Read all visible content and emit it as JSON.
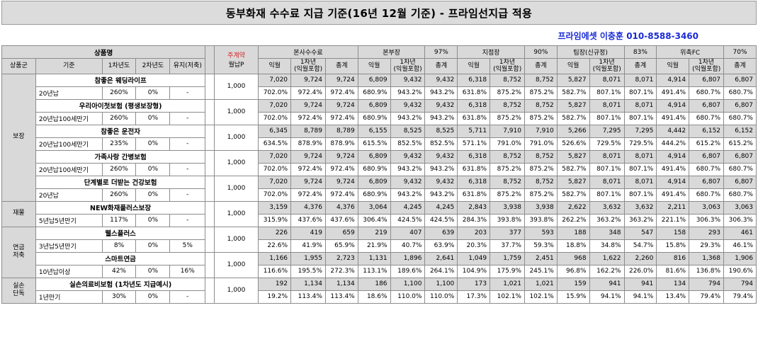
{
  "title": "동부화재 수수료 지급 기준(16년 12월 기준) - 프라임선지급 적용",
  "contact": "프라임에셋 이충훈 010-8588-3460",
  "header": {
    "product_name": "상품명",
    "premium_label_top": "주계약",
    "premium_label_bottom": "월납P",
    "product_cols": [
      "상품군",
      "기준",
      "1차년도",
      "2차년도",
      "유지(저축)"
    ],
    "groups": [
      {
        "name": "본사수수료",
        "pct": ""
      },
      {
        "name": "본부장",
        "pct": "97%"
      },
      {
        "name": "지점장",
        "pct": "90%"
      },
      {
        "name": "팀장(신규정)",
        "pct": "83%"
      },
      {
        "name": "위촉FC",
        "pct": "70%"
      }
    ],
    "sub_cols": [
      "익월",
      "1차년\n(익월포함)",
      "총계"
    ]
  },
  "categories": [
    {
      "label": "보장",
      "start": 0,
      "span": 5
    },
    {
      "label": "재물",
      "start": 5,
      "span": 1
    },
    {
      "label": "연금\n저축",
      "start": 6,
      "span": 2
    },
    {
      "label": "실손\n단독",
      "start": 8,
      "span": 1
    }
  ],
  "products": [
    {
      "name": "참좋은 웨딩라이프",
      "basis": "20년납",
      "y1": "260%",
      "y2": "0%",
      "maint": "-",
      "premium": "1,000",
      "amounts": [
        [
          "7,020",
          "9,724",
          "9,724"
        ],
        [
          "6,809",
          "9,432",
          "9,432"
        ],
        [
          "6,318",
          "8,752",
          "8,752"
        ],
        [
          "5,827",
          "8,071",
          "8,071"
        ],
        [
          "4,914",
          "6,807",
          "6,807"
        ]
      ],
      "rates": [
        [
          "702.0%",
          "972.4%",
          "972.4%"
        ],
        [
          "680.9%",
          "943.2%",
          "943.2%"
        ],
        [
          "631.8%",
          "875.2%",
          "875.2%"
        ],
        [
          "582.7%",
          "807.1%",
          "807.1%"
        ],
        [
          "491.4%",
          "680.7%",
          "680.7%"
        ]
      ]
    },
    {
      "name": "우리아이첫보험 (평생보장형)",
      "basis": "20년납100세만기",
      "y1": "260%",
      "y2": "0%",
      "maint": "-",
      "premium": "1,000",
      "amounts": [
        [
          "7,020",
          "9,724",
          "9,724"
        ],
        [
          "6,809",
          "9,432",
          "9,432"
        ],
        [
          "6,318",
          "8,752",
          "8,752"
        ],
        [
          "5,827",
          "8,071",
          "8,071"
        ],
        [
          "4,914",
          "6,807",
          "6,807"
        ]
      ],
      "rates": [
        [
          "702.0%",
          "972.4%",
          "972.4%"
        ],
        [
          "680.9%",
          "943.2%",
          "943.2%"
        ],
        [
          "631.8%",
          "875.2%",
          "875.2%"
        ],
        [
          "582.7%",
          "807.1%",
          "807.1%"
        ],
        [
          "491.4%",
          "680.7%",
          "680.7%"
        ]
      ]
    },
    {
      "name": "참좋은 운전자",
      "basis": "20년납100세만기",
      "y1": "235%",
      "y2": "0%",
      "maint": "-",
      "premium": "1,000",
      "amounts": [
        [
          "6,345",
          "8,789",
          "8,789"
        ],
        [
          "6,155",
          "8,525",
          "8,525"
        ],
        [
          "5,711",
          "7,910",
          "7,910"
        ],
        [
          "5,266",
          "7,295",
          "7,295"
        ],
        [
          "4,442",
          "6,152",
          "6,152"
        ]
      ],
      "rates": [
        [
          "634.5%",
          "878.9%",
          "878.9%"
        ],
        [
          "615.5%",
          "852.5%",
          "852.5%"
        ],
        [
          "571.1%",
          "791.0%",
          "791.0%"
        ],
        [
          "526.6%",
          "729.5%",
          "729.5%"
        ],
        [
          "444.2%",
          "615.2%",
          "615.2%"
        ]
      ]
    },
    {
      "name": "가족사랑 간병보험",
      "basis": "20년납100세만기",
      "y1": "260%",
      "y2": "0%",
      "maint": "-",
      "premium": "1,000",
      "amounts": [
        [
          "7,020",
          "9,724",
          "9,724"
        ],
        [
          "6,809",
          "9,432",
          "9,432"
        ],
        [
          "6,318",
          "8,752",
          "8,752"
        ],
        [
          "5,827",
          "8,071",
          "8,071"
        ],
        [
          "4,914",
          "6,807",
          "6,807"
        ]
      ],
      "rates": [
        [
          "702.0%",
          "972.4%",
          "972.4%"
        ],
        [
          "680.9%",
          "943.2%",
          "943.2%"
        ],
        [
          "631.8%",
          "875.2%",
          "875.2%"
        ],
        [
          "582.7%",
          "807.1%",
          "807.1%"
        ],
        [
          "491.4%",
          "680.7%",
          "680.7%"
        ]
      ]
    },
    {
      "name": "단계별로 더받는 건강보험",
      "basis": "20년납",
      "y1": "260%",
      "y2": "0%",
      "maint": "-",
      "premium": "1,000",
      "amounts": [
        [
          "7,020",
          "9,724",
          "9,724"
        ],
        [
          "6,809",
          "9,432",
          "9,432"
        ],
        [
          "6,318",
          "8,752",
          "8,752"
        ],
        [
          "5,827",
          "8,071",
          "8,071"
        ],
        [
          "4,914",
          "6,807",
          "6,807"
        ]
      ],
      "rates": [
        [
          "702.0%",
          "972.4%",
          "972.4%"
        ],
        [
          "680.9%",
          "943.2%",
          "943.2%"
        ],
        [
          "631.8%",
          "875.2%",
          "875.2%"
        ],
        [
          "582.7%",
          "807.1%",
          "807.1%"
        ],
        [
          "491.4%",
          "680.7%",
          "680.7%"
        ]
      ]
    },
    {
      "name": "NEW화재플러스보장",
      "basis": "5년납5년만기",
      "y1": "117%",
      "y2": "0%",
      "maint": "-",
      "premium": "1,000",
      "amounts": [
        [
          "3,159",
          "4,376",
          "4,376"
        ],
        [
          "3,064",
          "4,245",
          "4,245"
        ],
        [
          "2,843",
          "3,938",
          "3,938"
        ],
        [
          "2,622",
          "3,632",
          "3,632"
        ],
        [
          "2,211",
          "3,063",
          "3,063"
        ]
      ],
      "rates": [
        [
          "315.9%",
          "437.6%",
          "437.6%"
        ],
        [
          "306.4%",
          "424.5%",
          "424.5%"
        ],
        [
          "284.3%",
          "393.8%",
          "393.8%"
        ],
        [
          "262.2%",
          "363.2%",
          "363.2%"
        ],
        [
          "221.1%",
          "306.3%",
          "306.3%"
        ]
      ]
    },
    {
      "name": "웰스플러스",
      "basis": "3년납5년만기",
      "y1": "8%",
      "y2": "0%",
      "maint": "5%",
      "premium": "1,000",
      "amounts": [
        [
          "226",
          "419",
          "659"
        ],
        [
          "219",
          "407",
          "639"
        ],
        [
          "203",
          "377",
          "593"
        ],
        [
          "188",
          "348",
          "547"
        ],
        [
          "158",
          "293",
          "461"
        ]
      ],
      "rates": [
        [
          "22.6%",
          "41.9%",
          "65.9%"
        ],
        [
          "21.9%",
          "40.7%",
          "63.9%"
        ],
        [
          "20.3%",
          "37.7%",
          "59.3%"
        ],
        [
          "18.8%",
          "34.8%",
          "54.7%"
        ],
        [
          "15.8%",
          "29.3%",
          "46.1%"
        ]
      ]
    },
    {
      "name": "스마트연금",
      "basis": "10년납이상",
      "y1": "42%",
      "y2": "0%",
      "maint": "16%",
      "premium": "1,000",
      "amounts": [
        [
          "1,166",
          "1,955",
          "2,723"
        ],
        [
          "1,131",
          "1,896",
          "2,641"
        ],
        [
          "1,049",
          "1,759",
          "2,451"
        ],
        [
          "968",
          "1,622",
          "2,260"
        ],
        [
          "816",
          "1,368",
          "1,906"
        ]
      ],
      "rates": [
        [
          "116.6%",
          "195.5%",
          "272.3%"
        ],
        [
          "113.1%",
          "189.6%",
          "264.1%"
        ],
        [
          "104.9%",
          "175.9%",
          "245.1%"
        ],
        [
          "96.8%",
          "162.2%",
          "226.0%"
        ],
        [
          "81.6%",
          "136.8%",
          "190.6%"
        ]
      ]
    },
    {
      "name": "실손의료비보험 (1차년도 지급예시)",
      "basis": "1년만기",
      "y1": "30%",
      "y2": "0%",
      "maint": "-",
      "premium": "1,000",
      "amounts": [
        [
          "192",
          "1,134",
          "1,134"
        ],
        [
          "186",
          "1,100",
          "1,100"
        ],
        [
          "173",
          "1,021",
          "1,021"
        ],
        [
          "159",
          "941",
          "941"
        ],
        [
          "134",
          "794",
          "794"
        ]
      ],
      "rates": [
        [
          "19.2%",
          "113.4%",
          "113.4%"
        ],
        [
          "18.6%",
          "110.0%",
          "110.0%"
        ],
        [
          "17.3%",
          "102.1%",
          "102.1%"
        ],
        [
          "15.9%",
          "94.1%",
          "94.1%"
        ],
        [
          "13.4%",
          "79.4%",
          "79.4%"
        ]
      ]
    }
  ]
}
